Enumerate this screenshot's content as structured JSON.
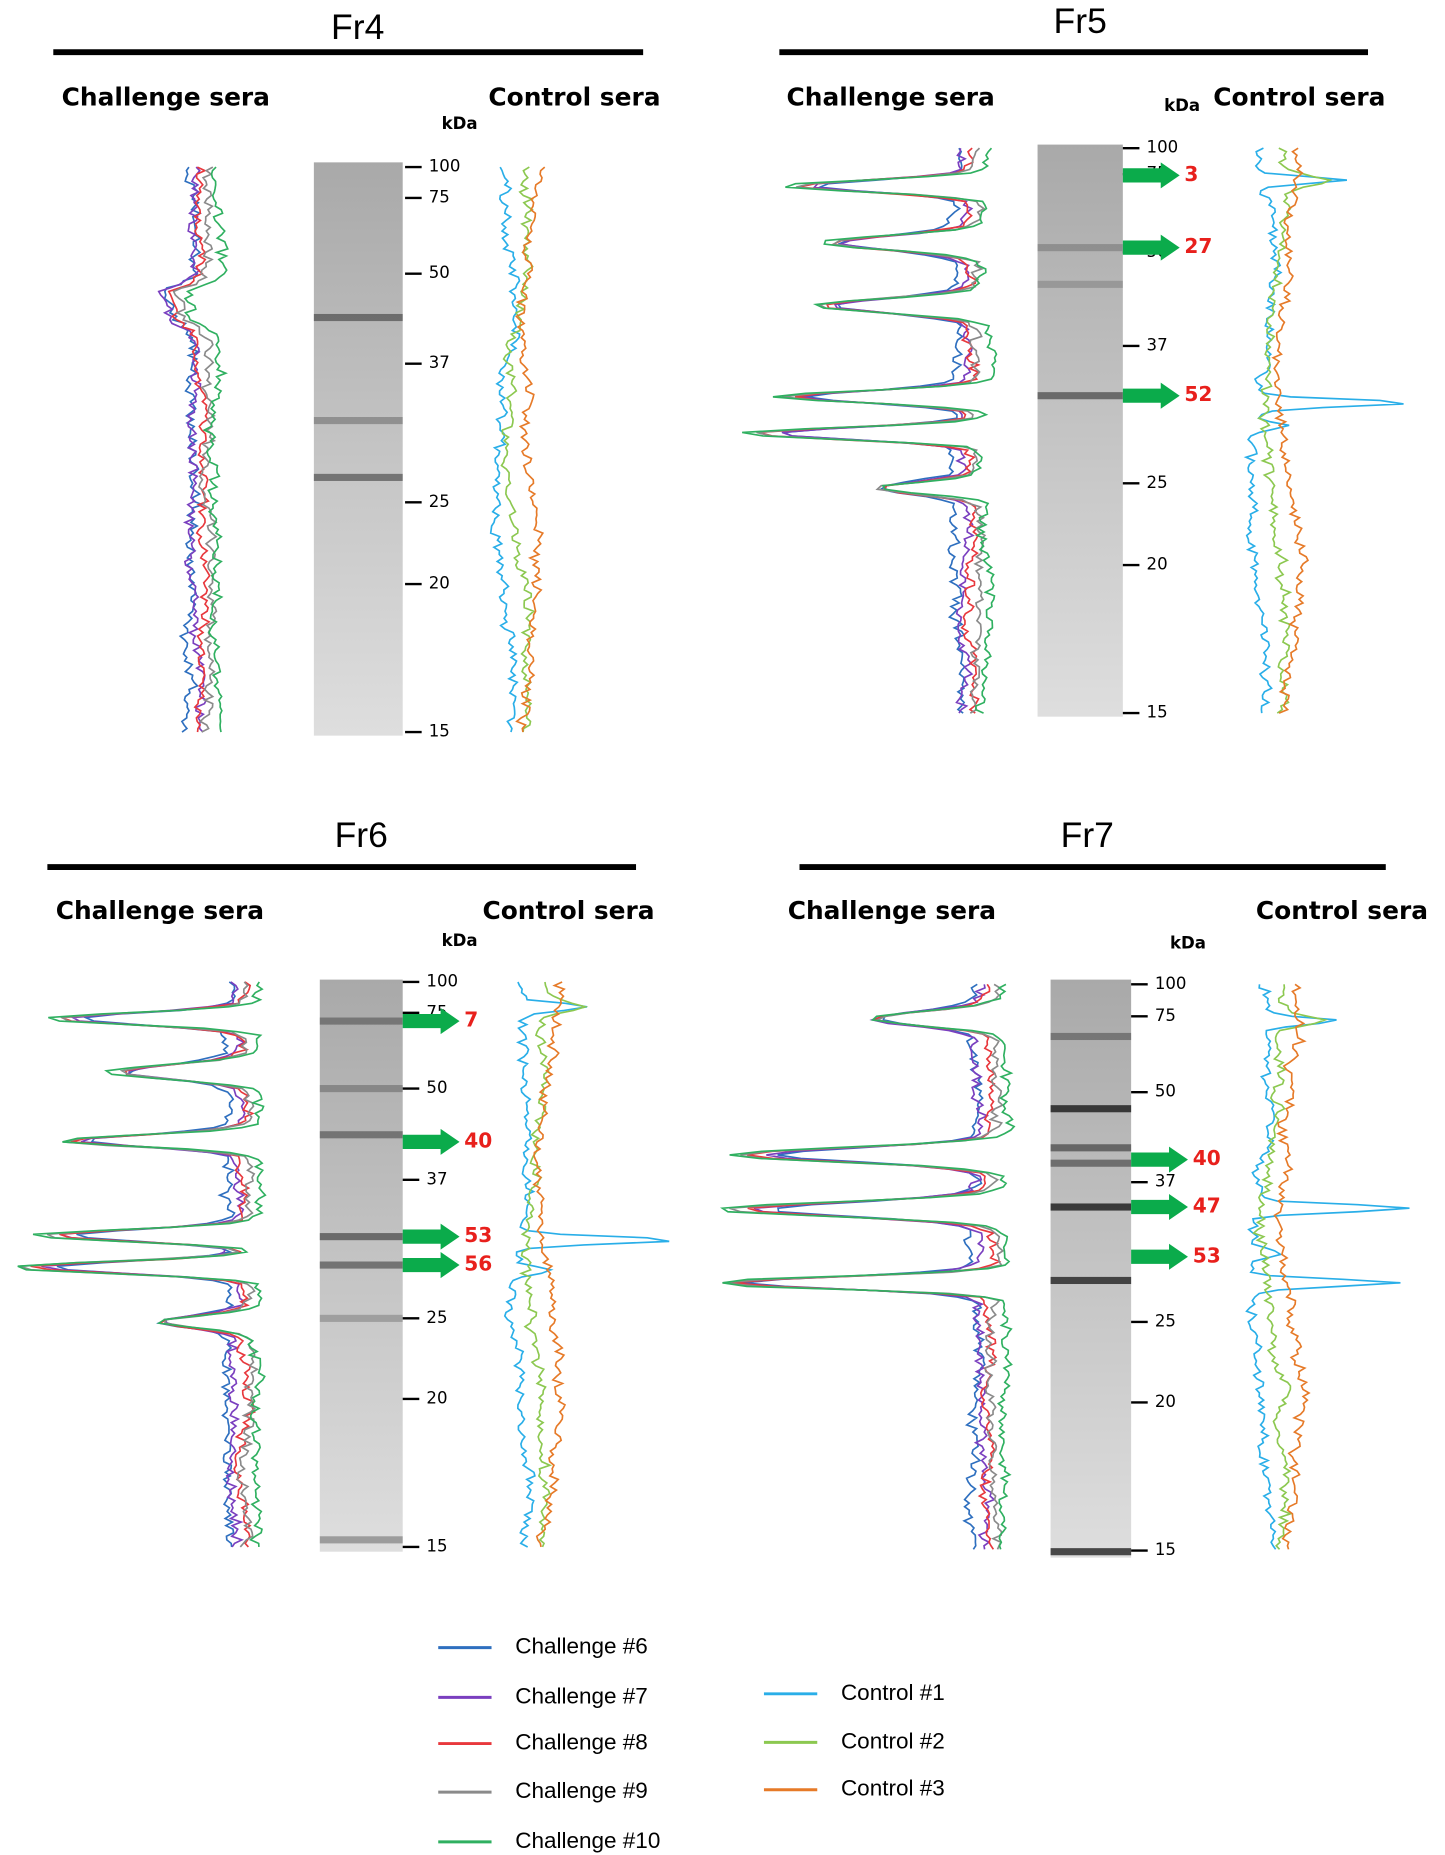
{
  "panels": [
    {
      "title": "Fr4",
      "left_label": "Challenge  sera",
      "right_label": "Control  sera",
      "unit": "kDa",
      "ladder": [
        100,
        75,
        50,
        37,
        25,
        20,
        15
      ]
    },
    {
      "title": "Fr5",
      "left_label": "Challenge  sera",
      "right_label": "Control  sera",
      "unit": "kDa",
      "ladder": [
        100,
        75,
        50,
        37,
        25,
        20,
        15
      ],
      "arrows": [
        3,
        27,
        52
      ]
    },
    {
      "title": "Fr6",
      "left_label": "Challenge  sera",
      "right_label": "Control  sera",
      "unit": "kDa",
      "ladder": [
        100,
        75,
        50,
        37,
        25,
        20,
        15
      ],
      "arrows": [
        7,
        40,
        53,
        56
      ]
    },
    {
      "title": "Fr7",
      "left_label": "Challenge  sera",
      "right_label": "Control  sera",
      "unit": "kDa",
      "ladder": [
        100,
        75,
        50,
        37,
        25,
        20,
        15
      ],
      "arrows": [
        40,
        47,
        53
      ]
    }
  ],
  "legend": {
    "challenge": [
      {
        "name": "Challenge #6",
        "color": "#2e6fbf"
      },
      {
        "name": "Challenge #7",
        "color": "#7a3fbf"
      },
      {
        "name": "Challenge #8",
        "color": "#e8383d"
      },
      {
        "name": "Challenge #9",
        "color": "#8a8a8a"
      },
      {
        "name": "Challenge #10",
        "color": "#2fb060"
      }
    ],
    "control": [
      {
        "name": "Control #1",
        "color": "#29aee8"
      },
      {
        "name": "Control #2",
        "color": "#8cc850"
      },
      {
        "name": "Control #3",
        "color": "#e67a28"
      }
    ]
  }
}
